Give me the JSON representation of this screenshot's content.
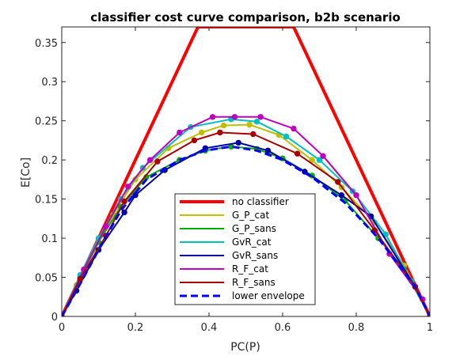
{
  "chart_data": {
    "type": "line",
    "title": "classifier cost curve comparison, b2b scenario",
    "xlabel": "PC(P)",
    "ylabel": "E[Co]",
    "xlim": [
      0,
      1
    ],
    "ylim": [
      0,
      0.37
    ],
    "xticks": [
      0,
      0.2,
      0.4,
      0.6,
      0.8,
      1
    ],
    "xtick_labels": [
      "0",
      "0.2",
      "0.4",
      "0.6",
      "0.8",
      "1"
    ],
    "yticks": [
      0,
      0.05,
      0.1,
      0.15,
      0.2,
      0.25,
      0.3,
      0.35
    ],
    "ytick_labels": [
      "0",
      "0.05",
      "0.1",
      "0.15",
      "0.2",
      "0.25",
      "0.3",
      "0.35"
    ],
    "grid": false,
    "legend_position": "center-bottom",
    "series": [
      {
        "name": "no classifier",
        "color": "#ff0000",
        "width": 4,
        "dash": "",
        "markers": false,
        "points": [
          [
            0,
            0
          ],
          [
            0.37,
            0.37
          ],
          [
            0.63,
            0.37
          ],
          [
            1,
            0
          ]
        ]
      },
      {
        "name": "G_P_cat",
        "color": "#bfbf00",
        "width": 2,
        "dash": "",
        "markers": true,
        "points": [
          [
            0,
            0
          ],
          [
            0.04,
            0.04
          ],
          [
            0.09,
            0.085
          ],
          [
            0.14,
            0.13
          ],
          [
            0.2,
            0.175
          ],
          [
            0.29,
            0.215
          ],
          [
            0.38,
            0.235
          ],
          [
            0.44,
            0.244
          ],
          [
            0.51,
            0.245
          ],
          [
            0.59,
            0.232
          ],
          [
            0.68,
            0.2
          ],
          [
            0.76,
            0.165
          ],
          [
            0.85,
            0.12
          ],
          [
            0.93,
            0.065
          ],
          [
            1,
            0
          ]
        ]
      },
      {
        "name": "G_P_sans",
        "color": "#00b000",
        "width": 2,
        "dash": "",
        "markers": true,
        "points": [
          [
            0,
            0
          ],
          [
            0.05,
            0.05
          ],
          [
            0.1,
            0.095
          ],
          [
            0.16,
            0.14
          ],
          [
            0.23,
            0.178
          ],
          [
            0.32,
            0.2
          ],
          [
            0.39,
            0.212
          ],
          [
            0.46,
            0.217
          ],
          [
            0.53,
            0.214
          ],
          [
            0.6,
            0.202
          ],
          [
            0.68,
            0.18
          ],
          [
            0.77,
            0.148
          ],
          [
            0.86,
            0.1
          ],
          [
            0.93,
            0.06
          ],
          [
            1,
            0
          ]
        ]
      },
      {
        "name": "GvR_cat",
        "color": "#00bfbf",
        "width": 2,
        "dash": "",
        "markers": true,
        "points": [
          [
            0,
            0
          ],
          [
            0.05,
            0.053
          ],
          [
            0.1,
            0.1
          ],
          [
            0.16,
            0.15
          ],
          [
            0.22,
            0.19
          ],
          [
            0.35,
            0.242
          ],
          [
            0.46,
            0.252
          ],
          [
            0.53,
            0.249
          ],
          [
            0.61,
            0.23
          ],
          [
            0.7,
            0.2
          ],
          [
            0.79,
            0.16
          ],
          [
            0.88,
            0.105
          ],
          [
            0.95,
            0.045
          ],
          [
            1,
            0
          ]
        ]
      },
      {
        "name": "GvR_sans",
        "color": "#0000a8",
        "width": 2,
        "dash": "",
        "markers": true,
        "points": [
          [
            0,
            0
          ],
          [
            0.04,
            0.033
          ],
          [
            0.1,
            0.085
          ],
          [
            0.17,
            0.133
          ],
          [
            0.2,
            0.155
          ],
          [
            0.28,
            0.187
          ],
          [
            0.39,
            0.215
          ],
          [
            0.48,
            0.222
          ],
          [
            0.56,
            0.212
          ],
          [
            0.66,
            0.185
          ],
          [
            0.76,
            0.155
          ],
          [
            0.84,
            0.128
          ],
          [
            0.96,
            0.038
          ],
          [
            1,
            0
          ]
        ]
      },
      {
        "name": "R_F_cat",
        "color": "#bf00bf",
        "width": 2,
        "dash": "",
        "markers": true,
        "points": [
          [
            0,
            0
          ],
          [
            0.06,
            0.06
          ],
          [
            0.12,
            0.115
          ],
          [
            0.18,
            0.166
          ],
          [
            0.24,
            0.2
          ],
          [
            0.32,
            0.235
          ],
          [
            0.41,
            0.255
          ],
          [
            0.47,
            0.255
          ],
          [
            0.54,
            0.255
          ],
          [
            0.63,
            0.24
          ],
          [
            0.71,
            0.205
          ],
          [
            0.8,
            0.155
          ],
          [
            0.89,
            0.08
          ],
          [
            0.98,
            0.022
          ],
          [
            1,
            0
          ]
        ]
      },
      {
        "name": "R_F_sans",
        "color": "#a80000",
        "width": 2,
        "dash": "",
        "markers": true,
        "points": [
          [
            0,
            0
          ],
          [
            0.05,
            0.048
          ],
          [
            0.12,
            0.103
          ],
          [
            0.17,
            0.147
          ],
          [
            0.26,
            0.198
          ],
          [
            0.36,
            0.225
          ],
          [
            0.43,
            0.235
          ],
          [
            0.52,
            0.233
          ],
          [
            0.64,
            0.208
          ],
          [
            0.75,
            0.172
          ],
          [
            0.85,
            0.11
          ],
          [
            0.96,
            0.038
          ],
          [
            1,
            0
          ]
        ]
      },
      {
        "name": "lower envelope",
        "color": "#0000ff",
        "width": 3,
        "dash": "9,5",
        "markers": false,
        "points": [
          [
            0,
            0
          ],
          [
            0.04,
            0.033
          ],
          [
            0.1,
            0.085
          ],
          [
            0.16,
            0.135
          ],
          [
            0.23,
            0.175
          ],
          [
            0.32,
            0.2
          ],
          [
            0.39,
            0.212
          ],
          [
            0.46,
            0.217
          ],
          [
            0.53,
            0.212
          ],
          [
            0.6,
            0.2
          ],
          [
            0.68,
            0.178
          ],
          [
            0.77,
            0.145
          ],
          [
            0.86,
            0.1
          ],
          [
            0.96,
            0.038
          ],
          [
            1,
            0
          ]
        ]
      }
    ]
  }
}
